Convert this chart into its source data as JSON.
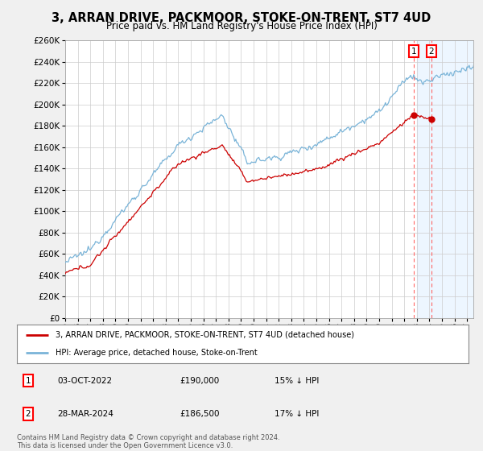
{
  "title": "3, ARRAN DRIVE, PACKMOOR, STOKE-ON-TRENT, ST7 4UD",
  "subtitle": "Price paid vs. HM Land Registry's House Price Index (HPI)",
  "ylim": [
    0,
    260000
  ],
  "yticks": [
    0,
    20000,
    40000,
    60000,
    80000,
    100000,
    120000,
    140000,
    160000,
    180000,
    200000,
    220000,
    240000,
    260000
  ],
  "hpi_color": "#7ab4d8",
  "price_color": "#cc0000",
  "shade_color": "#ddeeff",
  "sale1": {
    "date": "03-OCT-2022",
    "price": 190000,
    "pct": "15%",
    "direction": "↓"
  },
  "sale2": {
    "date": "28-MAR-2024",
    "price": 186500,
    "pct": "17%",
    "direction": "↓"
  },
  "legend_label1": "3, ARRAN DRIVE, PACKMOOR, STOKE-ON-TRENT, ST7 4UD (detached house)",
  "legend_label2": "HPI: Average price, detached house, Stoke-on-Trent",
  "footer": "Contains HM Land Registry data © Crown copyright and database right 2024.\nThis data is licensed under the Open Government Licence v3.0.",
  "background_color": "#f0f0f0",
  "plot_bg_color": "#ffffff"
}
